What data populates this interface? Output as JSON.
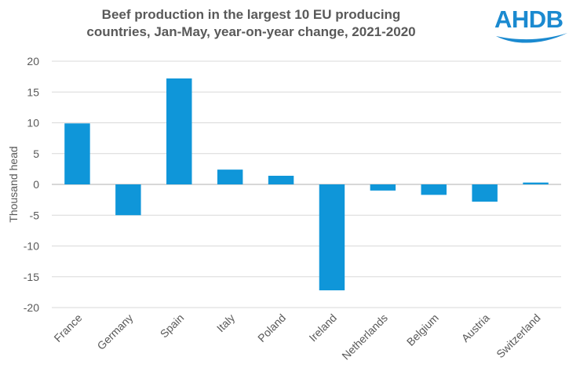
{
  "title_line1": "Beef production in the largest 10 EU producing",
  "title_line2": "countries, Jan-May, year-on-year change, 2021-2020",
  "logo_text": "AHDB",
  "colors": {
    "bar": "#0f96d9",
    "grid": "#d9d9d9",
    "zero_line": "#bfbfbf",
    "text": "#595959",
    "brand": "#1b8ad0"
  },
  "chart_data": {
    "type": "bar",
    "title": "Beef production in the largest 10 EU producing countries, Jan-May, year-on-year change, 2021-2020",
    "categories": [
      "France",
      "Germany",
      "Spain",
      "Italy",
      "Poland",
      "Ireland",
      "Netherlands",
      "Belgium",
      "Austria",
      "Switzerland"
    ],
    "values": [
      9.9,
      -5.0,
      17.2,
      2.4,
      1.4,
      -17.2,
      -1.0,
      -1.7,
      -2.8,
      0.3
    ],
    "xlabel": "",
    "ylabel": "Thousand head",
    "ylim": [
      -20,
      20
    ],
    "yticks": [
      20,
      15,
      10,
      5,
      0,
      -5,
      -10,
      -15,
      -20
    ],
    "grid": true,
    "legend": "none"
  }
}
